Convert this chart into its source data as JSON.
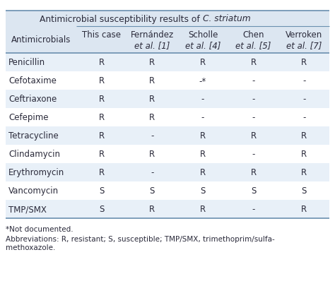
{
  "title_normal": "Antimicrobial susceptibility results of ",
  "title_italic": "C. striatum",
  "col1_header": "Antimicrobials",
  "col_headers_line1": [
    "This case",
    "Fernández",
    "Scholle",
    "Chen",
    "Verroken"
  ],
  "col_headers_line2": [
    "",
    "et al. [1]",
    "et al. [4]",
    "et al. [5]",
    "et al. [7]"
  ],
  "rows": [
    [
      "Penicillin",
      "R",
      "R",
      "R",
      "R",
      "R"
    ],
    [
      "Cefotaxime",
      "R",
      "R",
      "-*",
      "-",
      "-"
    ],
    [
      "Ceftriaxone",
      "R",
      "R",
      "-",
      "-",
      "-"
    ],
    [
      "Cefepime",
      "R",
      "R",
      "-",
      "-",
      "-"
    ],
    [
      "Tetracycline",
      "R",
      "-",
      "R",
      "R",
      "R"
    ],
    [
      "Clindamycin",
      "R",
      "R",
      "R",
      "-",
      "R"
    ],
    [
      "Erythromycin",
      "R",
      "-",
      "R",
      "R",
      "R"
    ],
    [
      "Vancomycin",
      "S",
      "S",
      "S",
      "S",
      "S"
    ],
    [
      "TMP/SMX",
      "S",
      "R",
      "R",
      "-",
      "R"
    ]
  ],
  "footer1": "*Not documented.",
  "footer2": "Abbreviations: R, resistant; S, susceptible; TMP/SMX, trimethoprim/sulfa-",
  "footer3": "methoxazole.",
  "bg_header": "#dce6f1",
  "bg_alt": "#e8f0f8",
  "bg_white": "#ffffff",
  "text_color": "#2a2a3a",
  "border_color": "#6a8faf",
  "font_size_data": 8.5,
  "font_size_header": 8.5,
  "font_size_title": 8.8,
  "font_size_footer": 7.5
}
